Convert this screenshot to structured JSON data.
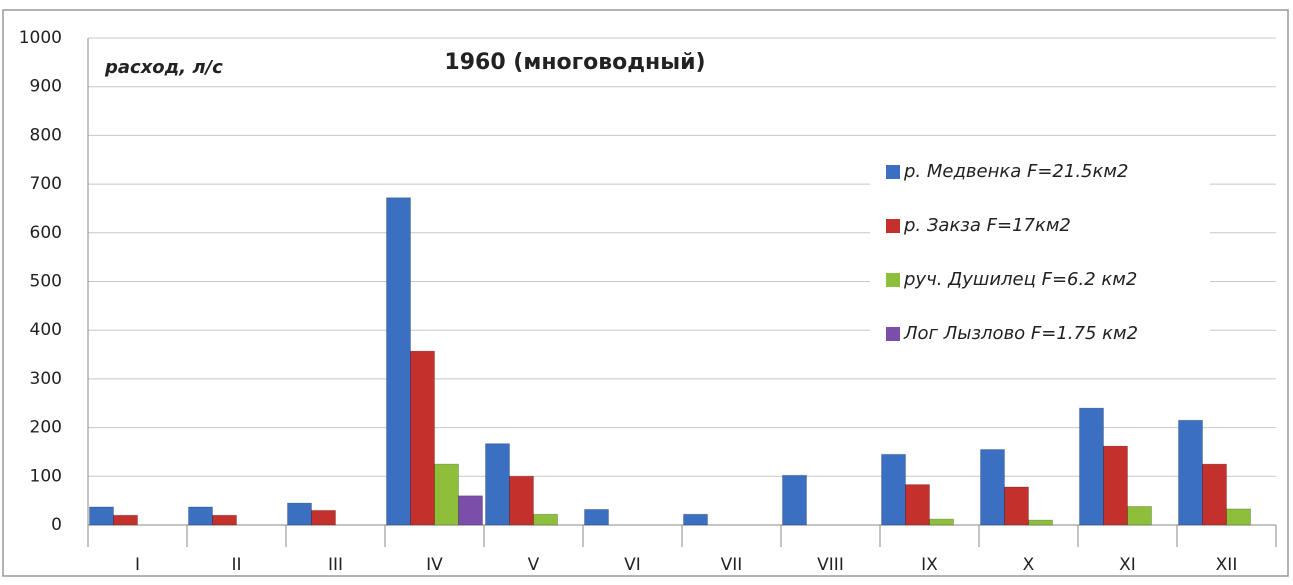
{
  "chart_data": {
    "type": "bar",
    "title": "1960 (многоводный)",
    "y_label": "расход, л/с",
    "categories": [
      "I",
      "II",
      "III",
      "IV",
      "V",
      "VI",
      "VII",
      "VIII",
      "IX",
      "X",
      "XI",
      "XII"
    ],
    "series": [
      {
        "name": "р. Медвенка F=21.5км2",
        "color": "#3b6fc2",
        "values": [
          37,
          37,
          45,
          672,
          167,
          32,
          22,
          102,
          145,
          155,
          240,
          215
        ]
      },
      {
        "name": "р. Закза F=17км2",
        "color": "#c4302b",
        "values": [
          20,
          20,
          30,
          357,
          100,
          0,
          0,
          0,
          83,
          78,
          162,
          125
        ]
      },
      {
        "name": "руч. Душилец F=6.2 км2",
        "color": "#8dbf3b",
        "values": [
          0,
          0,
          0,
          125,
          22,
          0,
          0,
          0,
          12,
          10,
          38,
          33
        ]
      },
      {
        "name": "Лог Лызлово F=1.75 км2",
        "color": "#7b4fa9",
        "values": [
          0,
          0,
          0,
          60,
          0,
          0,
          0,
          0,
          0,
          0,
          0,
          0
        ]
      }
    ],
    "ylim": [
      0,
      1000
    ],
    "yticks": [
      0,
      100,
      200,
      300,
      400,
      500,
      600,
      700,
      800,
      900,
      1000
    ],
    "grid": true,
    "legend": "right"
  }
}
